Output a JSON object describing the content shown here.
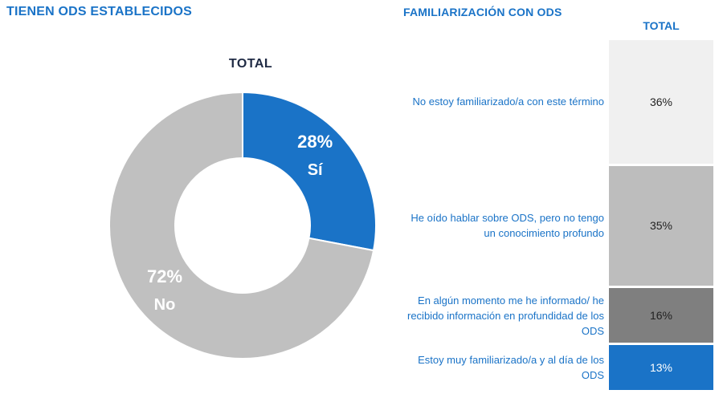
{
  "chart_data": [
    {
      "type": "pie",
      "title": "TIENEN ODS ESTABLECIDOS",
      "subtitle": "TOTAL",
      "slices": [
        {
          "label": "Sí",
          "value": 28,
          "display": "28%",
          "color": "#1a73c7"
        },
        {
          "label": "No",
          "value": 72,
          "display": "72%",
          "color": "#c0c0c0"
        }
      ]
    },
    {
      "type": "bar",
      "stacked": true,
      "title": "FAMILIARIZACIÓN CON ODS",
      "categories": [
        "TOTAL"
      ],
      "series": [
        {
          "name": "No estoy familiarizado/a con este término",
          "values": [
            36
          ],
          "display": "36%",
          "color": "#f0f0f0"
        },
        {
          "name": "He oído hablar sobre ODS, pero no tengo un conocimiento profundo",
          "values": [
            35
          ],
          "display": "35%",
          "color": "#bdbdbd"
        },
        {
          "name": "En algún momento me he informado/ he recibido información en profundidad de los ODS",
          "values": [
            16
          ],
          "display": "16%",
          "color": "#7f7f7f"
        },
        {
          "name": "Estoy muy familiarizado/a y al día de los ODS",
          "values": [
            13
          ],
          "display": "13%",
          "color": "#1a73c7"
        }
      ]
    }
  ]
}
